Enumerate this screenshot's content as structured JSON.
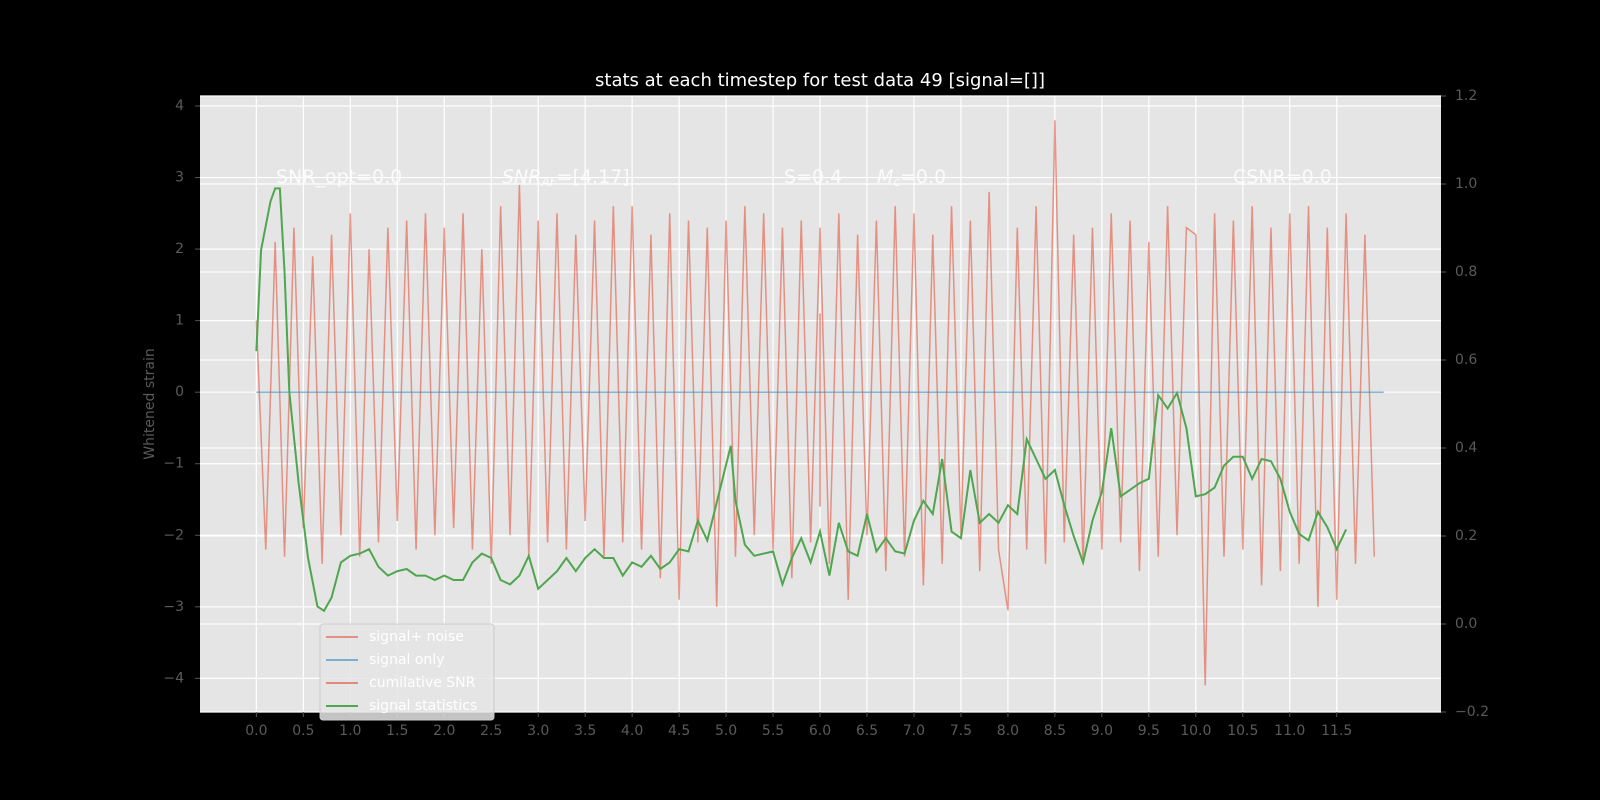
{
  "chart_data": {
    "type": "line",
    "title": "stats at each timestep for test data 49 [signal=[]]",
    "ylabel": "Whitened strain",
    "xlim": [
      -0.6,
      12.61
    ],
    "ylim": [
      -4.47,
      4.14
    ],
    "y2lim": [
      -0.2,
      1.2
    ],
    "xticks": [
      {
        "value": 0,
        "label": "0.0"
      },
      0.5,
      {
        "value": 1,
        "label": "1.0"
      },
      1.5,
      {
        "value": 2,
        "label": "2.0"
      },
      2.5,
      {
        "value": 3,
        "label": "3.0"
      },
      3.5,
      {
        "value": 4,
        "label": "4.0"
      },
      4.5,
      {
        "value": 5,
        "label": "5.0"
      },
      5.5,
      {
        "value": 6,
        "label": "6.0"
      },
      6.5,
      {
        "value": 7,
        "label": "7.0"
      },
      7.5,
      {
        "value": 8,
        "label": "8.0"
      },
      8.5,
      {
        "value": 9,
        "label": "9.0"
      },
      9.5,
      {
        "value": 10,
        "label": "10.0"
      },
      10.5,
      {
        "value": 11,
        "label": "11.0"
      },
      11.5
    ],
    "yticks": [
      {
        "value": -4,
        "label": "−4"
      },
      {
        "value": -3,
        "label": "−3"
      },
      {
        "value": -2,
        "label": "−2"
      },
      {
        "value": -1,
        "label": "−1"
      },
      0,
      1,
      2,
      3,
      4
    ],
    "y2ticks": [
      {
        "value": -0.2,
        "label": "−0.2"
      },
      {
        "value": 0,
        "label": "0.0"
      },
      0.2,
      0.4,
      0.6,
      0.8,
      {
        "value": 1,
        "label": "1.0"
      },
      1.2
    ],
    "grid": true,
    "legend": "lower left",
    "annotations": [
      {
        "main": "SNR_opt=0.0",
        "sub": null,
        "rest": null
      },
      {
        "main": "SNR",
        "sub": "AF",
        "rest": "=[4.17]"
      },
      {
        "main": "S",
        "sub": null,
        "rest": "=0.4"
      },
      {
        "main": "M",
        "sub": "c",
        "rest": "=0.0"
      },
      {
        "main": "CSNR=0.0",
        "sub": null,
        "rest": null
      }
    ],
    "series": [
      {
        "name": "signal+ noise",
        "color": "#e24a33",
        "x": [
          0,
          0.1,
          0.2,
          0.3,
          0.4,
          0.5,
          0.6,
          0.7,
          0.8,
          0.9,
          1,
          1.1,
          1.2,
          1.3,
          1.4,
          1.5,
          1.6,
          1.7,
          1.8,
          1.9,
          2,
          2.1,
          2.2,
          2.3,
          2.4,
          2.5,
          2.6,
          2.7,
          2.8,
          2.9,
          3,
          3.1,
          3.2,
          3.3,
          3.4,
          3.5,
          3.6,
          3.7,
          3.8,
          3.9,
          4,
          4.1,
          4.2,
          4.3,
          4.4,
          4.5,
          4.6,
          4.7,
          4.8,
          4.9,
          5,
          5.1,
          5.2,
          5.3,
          5.4,
          5.5,
          5.6,
          5.7,
          5.8,
          5.9,
          6,
          6.1,
          6.2,
          6.3,
          6.4,
          6.5,
          6.6,
          6.7,
          6.8,
          6.9,
          7,
          7.1,
          7.2,
          7.3,
          7.4,
          7.5,
          7.6,
          7.7,
          7.8,
          7.9,
          8,
          8.1,
          8.2,
          8.3,
          8.4,
          8.5,
          8.6,
          8.7,
          8.8,
          8.9,
          9,
          9.1,
          9.2,
          9.3,
          9.4,
          9.5,
          9.6,
          9.7,
          9.8,
          9.9,
          10,
          10.1,
          10.2,
          10.3,
          10.4,
          10.5,
          10.6,
          10.7,
          10.8,
          10.9,
          11,
          11.1,
          11.2,
          11.3,
          11.4,
          11.5,
          11.6,
          11.7,
          11.8,
          11.9
        ],
        "values": [
          1.0,
          -2.2,
          2.1,
          -2.3,
          2.3,
          -1.9,
          1.9,
          -2.4,
          2.2,
          -2.0,
          2.5,
          -2.3,
          2.0,
          -2.1,
          2.3,
          -1.8,
          2.4,
          -2.2,
          2.5,
          -2.0,
          2.3,
          -1.9,
          2.5,
          -2.2,
          2.0,
          -2.4,
          2.6,
          -2.0,
          2.9,
          -2.3,
          2.4,
          -2.1,
          2.5,
          -2.2,
          2.2,
          -1.8,
          2.4,
          -2.3,
          2.6,
          -2.1,
          2.6,
          -2.2,
          2.2,
          -2.6,
          2.5,
          -2.9,
          2.4,
          -2.1,
          2.3,
          -3.0,
          2.4,
          -2.3,
          2.6,
          -2.0,
          2.5,
          -2.2,
          2.3,
          -2.6,
          2.4,
          -2.1,
          2.3,
          -2.4,
          2.5,
          -2.9,
          2.2,
          -2.0,
          2.4,
          -2.5,
          2.6,
          -2.3,
          2.5,
          -2.7,
          2.2,
          -2.4,
          2.6,
          -2.0,
          2.4,
          -2.5,
          2.8,
          -2.2,
          -3.05,
          2.3,
          -2.2,
          2.6,
          -2.4,
          3.8,
          -2.1,
          2.2,
          -2.4,
          2.3,
          -2.2,
          2.5,
          -2.1,
          2.4,
          -2.5,
          2.1,
          -2.3,
          2.6,
          -2.0,
          2.3,
          2.2,
          -4.1,
          2.5,
          -2.3,
          2.4,
          -2.2,
          2.6,
          -2.7,
          2.3,
          -2.5,
          2.5,
          -2.4,
          2.6,
          -3.0,
          2.3,
          -2.9,
          2.5,
          -2.4,
          2.2,
          -2.3
        ]
      },
      {
        "name": "signal only",
        "color": "#348abd",
        "x": [
          0,
          12
        ],
        "values": [
          0,
          0
        ]
      },
      {
        "name": "cumilative SNR",
        "color": "#e24a33",
        "x": [
          6,
          6
        ],
        "values": [
          1.1,
          -1.6
        ]
      },
      {
        "name": "signal statistics",
        "color": "#4ea64e",
        "axis": "y2",
        "x": [
          0,
          0.05,
          0.15,
          0.2,
          0.25,
          0.3,
          0.35,
          0.45,
          0.55,
          0.65,
          0.72,
          0.8,
          0.9,
          1,
          1.1,
          1.2,
          1.3,
          1.4,
          1.5,
          1.6,
          1.7,
          1.8,
          1.9,
          2,
          2.1,
          2.2,
          2.3,
          2.4,
          2.5,
          2.6,
          2.7,
          2.8,
          2.9,
          3,
          3.2,
          3.3,
          3.4,
          3.5,
          3.6,
          3.7,
          3.8,
          3.9,
          4,
          4.1,
          4.2,
          4.3,
          4.4,
          4.5,
          4.6,
          4.7,
          4.8,
          5.05,
          5.1,
          5.2,
          5.3,
          5.5,
          5.6,
          5.7,
          5.8,
          5.9,
          6,
          6.1,
          6.2,
          6.3,
          6.4,
          6.5,
          6.6,
          6.7,
          6.8,
          6.9,
          7,
          7.1,
          7.2,
          7.3,
          7.4,
          7.5,
          7.6,
          7.7,
          7.8,
          7.9,
          8,
          8.1,
          8.2,
          8.3,
          8.4,
          8.5,
          8.6,
          8.7,
          8.8,
          8.9,
          9,
          9.1,
          9.2,
          9.3,
          9.4,
          9.5,
          9.6,
          9.7,
          9.8,
          9.9,
          10,
          10.1,
          10.2,
          10.3,
          10.4,
          10.5,
          10.6,
          10.7,
          10.8,
          10.9,
          11,
          11.1,
          11.2,
          11.3,
          11.4,
          11.5,
          11.6
        ],
        "values": [
          0.62,
          0.85,
          0.96,
          0.99,
          0.99,
          0.8,
          0.53,
          0.32,
          0.15,
          0.04,
          0.03,
          0.06,
          0.14,
          0.155,
          0.16,
          0.17,
          0.13,
          0.11,
          0.12,
          0.125,
          0.11,
          0.11,
          0.1,
          0.11,
          0.1,
          0.1,
          0.14,
          0.16,
          0.15,
          0.1,
          0.09,
          0.11,
          0.155,
          0.08,
          0.12,
          0.15,
          0.12,
          0.15,
          0.17,
          0.15,
          0.15,
          0.11,
          0.14,
          0.13,
          0.155,
          0.125,
          0.14,
          0.17,
          0.165,
          0.235,
          0.19,
          0.405,
          0.28,
          0.18,
          0.155,
          0.165,
          0.09,
          0.15,
          0.195,
          0.14,
          0.21,
          0.11,
          0.23,
          0.165,
          0.155,
          0.25,
          0.165,
          0.195,
          0.165,
          0.16,
          0.235,
          0.28,
          0.25,
          0.375,
          0.21,
          0.195,
          0.35,
          0.23,
          0.25,
          0.23,
          0.27,
          0.25,
          0.42,
          0.375,
          0.33,
          0.35,
          0.27,
          0.2,
          0.14,
          0.235,
          0.3,
          0.445,
          0.29,
          0.305,
          0.32,
          0.33,
          0.52,
          0.49,
          0.525,
          0.445,
          0.29,
          0.295,
          0.31,
          0.36,
          0.38,
          0.38,
          0.33,
          0.375,
          0.37,
          0.33,
          0.255,
          0.205,
          0.19,
          0.255,
          0.22,
          0.17,
          0.215
        ]
      }
    ]
  }
}
